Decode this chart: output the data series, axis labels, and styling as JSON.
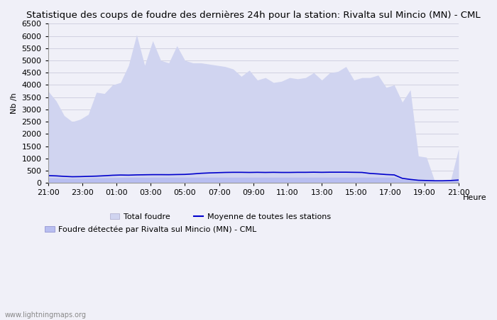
{
  "title": "Statistique des coups de foudre des dernières 24h pour la station: Rivalta sul Mincio (MN) - CML",
  "ylabel": "Nb /h",
  "watermark": "www.lightningmaps.org",
  "xlim": [
    0,
    24
  ],
  "ylim": [
    0,
    6500
  ],
  "yticks": [
    0,
    500,
    1000,
    1500,
    2000,
    2500,
    3000,
    3500,
    4000,
    4500,
    5000,
    5500,
    6000,
    6500
  ],
  "xtick_labels": [
    "21:00",
    "23:00",
    "01:00",
    "03:00",
    "05:00",
    "07:00",
    "09:00",
    "11:00",
    "13:00",
    "15:00",
    "17:00",
    "19:00",
    "21:00"
  ],
  "xtick_positions": [
    0,
    2,
    4,
    6,
    8,
    10,
    12,
    14,
    16,
    18,
    20,
    22,
    24
  ],
  "background_color": "#f0f0f8",
  "plot_bg_color": "#f0f0f8",
  "total_foudre_color": "#d0d4f0",
  "local_foudre_color": "#b8bef0",
  "mean_line_color": "#0000cc",
  "total_foudre_values": [
    3750,
    3350,
    2750,
    2500,
    2600,
    2800,
    3700,
    3650,
    4000,
    4100,
    4800,
    6050,
    4800,
    5800,
    5000,
    4900,
    5600,
    5000,
    4900,
    4900,
    4850,
    4800,
    4750,
    4650,
    4350,
    4600,
    4200,
    4300,
    4100,
    4150,
    4300,
    4250,
    4300,
    4500,
    4200,
    4500,
    4550,
    4750,
    4200,
    4300,
    4300,
    4400,
    3900,
    4000,
    3300,
    3800,
    1100,
    1050,
    100,
    100,
    100,
    1400
  ],
  "local_foudre_values": [
    220,
    210,
    195,
    190,
    190,
    200,
    210,
    215,
    220,
    225,
    230,
    235,
    230,
    235,
    235,
    235,
    235,
    235,
    235,
    235,
    235,
    235,
    235,
    235,
    235,
    235,
    235,
    235,
    235,
    235,
    235,
    235,
    235,
    235,
    235,
    235,
    235,
    235,
    235,
    235,
    235,
    235,
    235,
    235,
    150,
    130,
    80,
    60,
    50,
    50,
    60,
    100
  ],
  "mean_line_values": [
    300,
    290,
    270,
    255,
    260,
    270,
    280,
    295,
    315,
    325,
    320,
    330,
    335,
    340,
    340,
    338,
    345,
    350,
    370,
    395,
    410,
    420,
    430,
    435,
    435,
    430,
    435,
    430,
    435,
    430,
    430,
    435,
    435,
    440,
    435,
    440,
    440,
    440,
    435,
    430,
    390,
    370,
    345,
    330,
    190,
    145,
    110,
    100,
    90,
    90,
    100,
    120
  ],
  "legend_total_label": "Total foudre",
  "legend_mean_label": "Moyenne de toutes les stations",
  "legend_local_label": "Foudre détectée par Rivalta sul Mincio (MN) - CML",
  "title_fontsize": 9.5,
  "axis_fontsize": 8,
  "tick_fontsize": 8
}
